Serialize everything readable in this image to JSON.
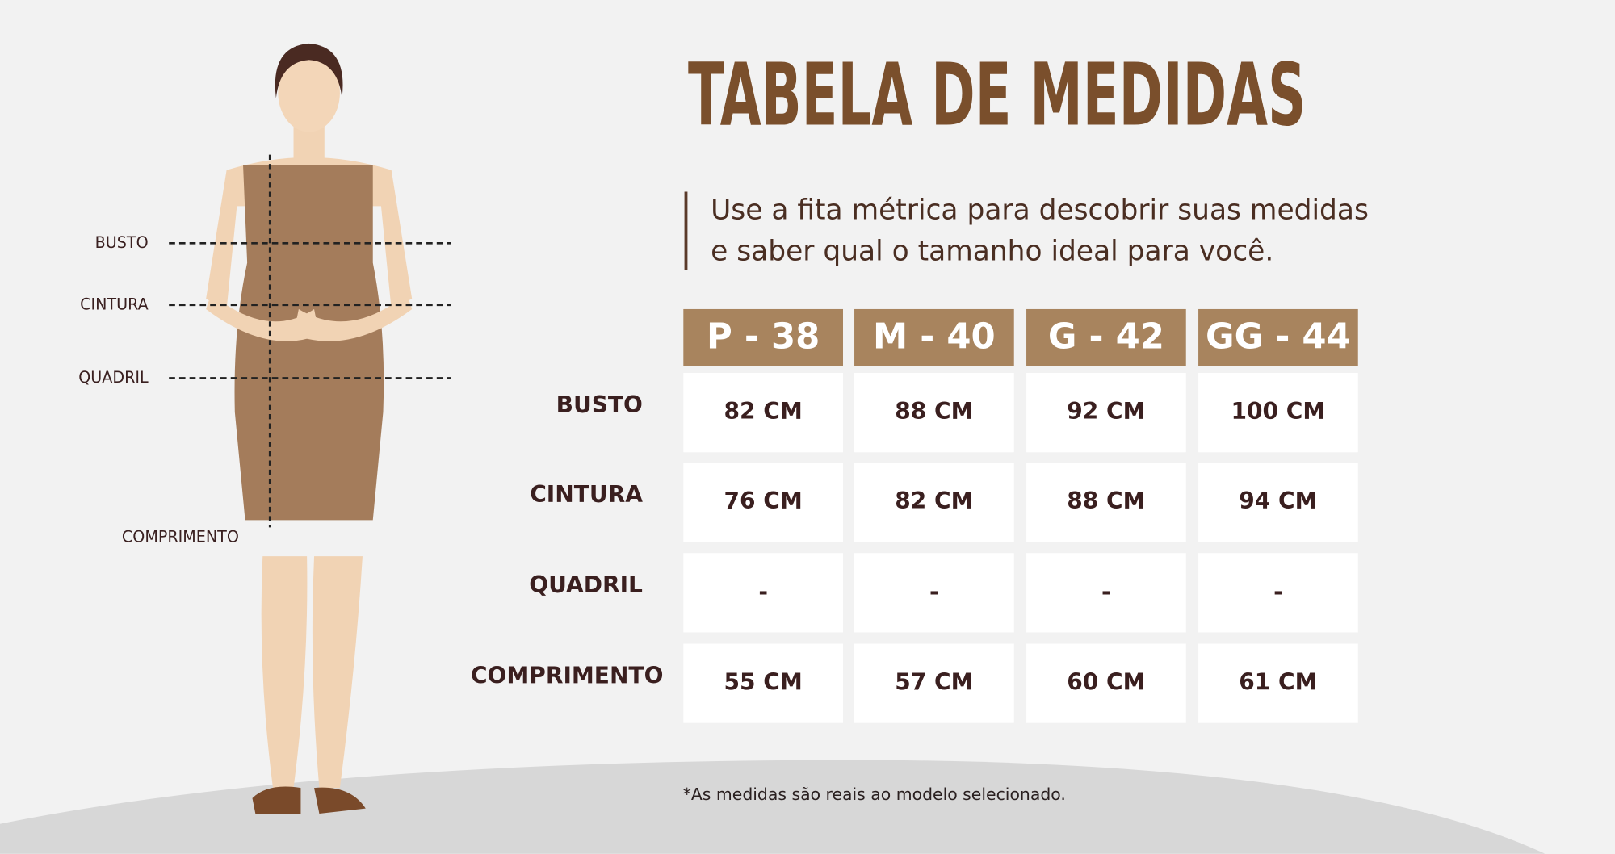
{
  "header": {
    "title": "TABELA DE MEDIDAS",
    "subtitle": [
      "Use a fita métrica para descobrir suas medidas",
      "e saber qual o tamanho ideal para você."
    ]
  },
  "figure": {
    "labels": [
      "BUSTO",
      "CINTURA",
      "QUADRIL",
      "COMPRIMENTO"
    ]
  },
  "table": {
    "columns": [
      "P - 38",
      "M - 40",
      "G - 42",
      "GG - 44"
    ],
    "rows": [
      {
        "label": "BUSTO",
        "cells": [
          "82 CM",
          "88 CM",
          "92 CM",
          "100 CM"
        ]
      },
      {
        "label": "CINTURA",
        "cells": [
          "76 CM",
          "82 CM",
          "88 CM",
          "94 CM"
        ]
      },
      {
        "label": "QUADRIL",
        "cells": [
          "-",
          "-",
          "-",
          "-"
        ]
      },
      {
        "label": "COMPRIMENTO",
        "cells": [
          "55 CM",
          "57 CM",
          "60 CM",
          "61 CM"
        ]
      }
    ]
  },
  "footnote": "*As medidas são reais ao modelo selecionado."
}
